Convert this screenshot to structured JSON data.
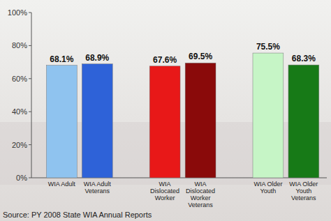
{
  "chart_data": {
    "type": "bar",
    "categories": [
      "WIA Adult",
      "WIA Adult Veterans",
      "WIA Dislocated Worker",
      "WIA Dislocated Worker Veterans",
      "WIA Older Youth",
      "WIA Older Youth Veterans"
    ],
    "values": [
      68.1,
      68.9,
      67.6,
      69.5,
      75.5,
      68.3
    ],
    "value_labels": [
      "68.1%",
      "68.9%",
      "67.6%",
      "69.5%",
      "75.5%",
      "68.3%"
    ],
    "colors": [
      "#8fc3ef",
      "#2e62d8",
      "#e81818",
      "#8a0a0a",
      "#c6f5c6",
      "#177a17"
    ],
    "ylim": [
      0,
      100
    ],
    "yticks": [
      {
        "value": 0,
        "label": "0%"
      },
      {
        "value": 20,
        "label": "20%"
      },
      {
        "value": 40,
        "label": "40%"
      },
      {
        "value": 60,
        "label": "60%"
      },
      {
        "value": 80,
        "label": "80%"
      },
      {
        "value": 100,
        "label": "100%"
      }
    ],
    "grid": false,
    "data_labels": true,
    "annotations": [
      "Source: PY 2008 State WIA Annual Reports"
    ]
  }
}
